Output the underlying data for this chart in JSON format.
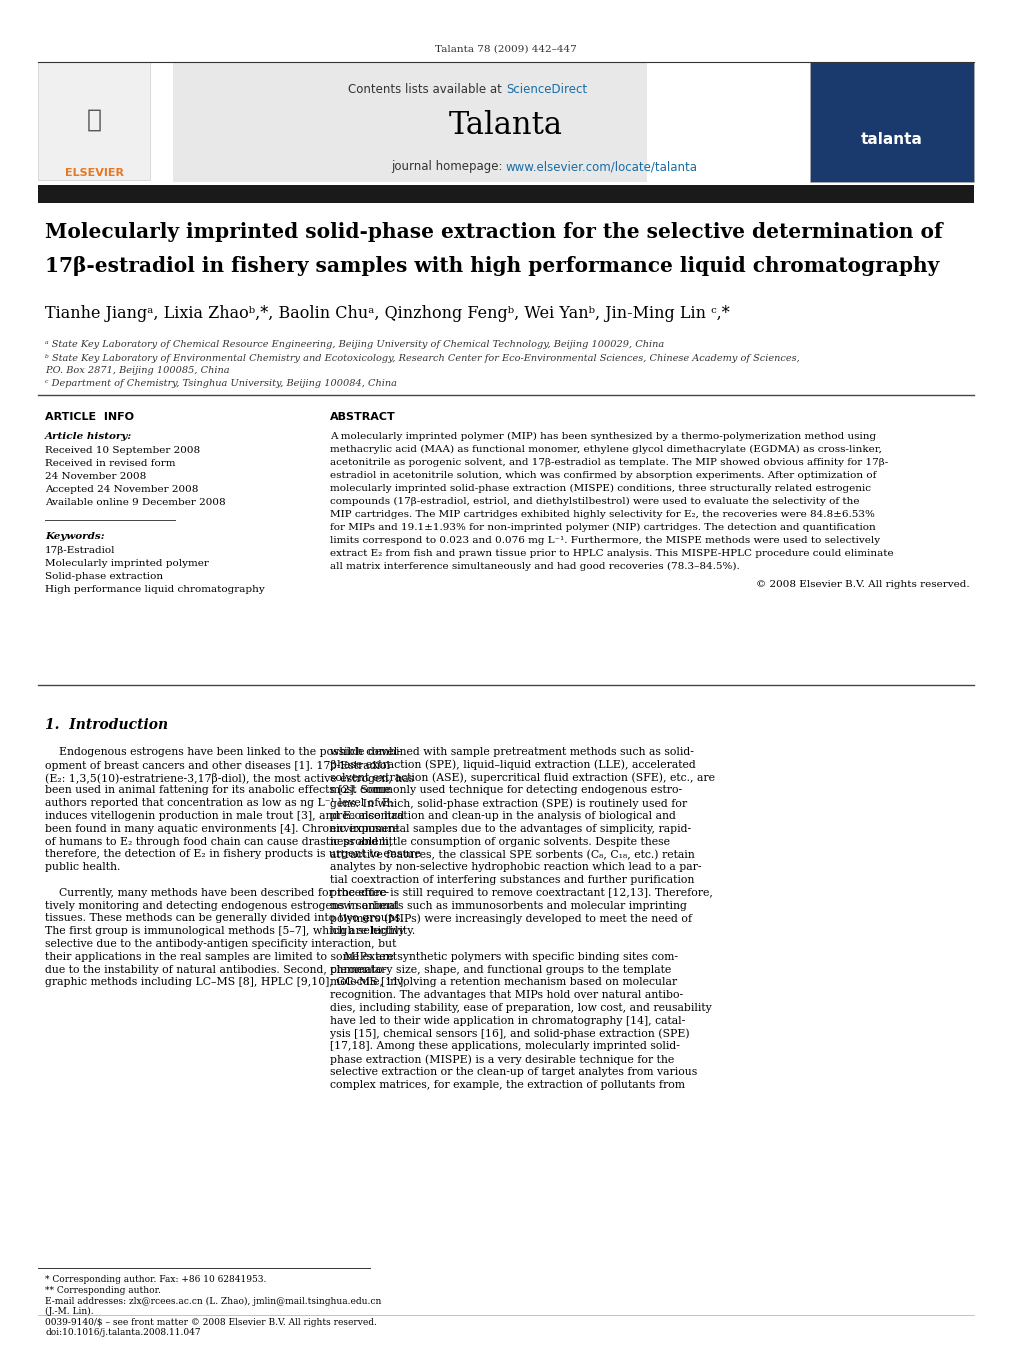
{
  "page_width": 9.92,
  "page_height": 13.23,
  "bg_color": "#ffffff",
  "journal_citation": "Talanta 78 (2009) 442–447",
  "journal_name": "Talanta",
  "journal_url": "www.elsevier.com/locate/talanta",
  "header_bg": "#e8e8e8",
  "link_color": "#1a6ca8",
  "text_color": "#000000",
  "article_info_header": "ARTICLE  INFO",
  "abstract_header": "ABSTRACT",
  "article_history_title": "Article history:",
  "history_lines": [
    "Received 10 September 2008",
    "Received in revised form",
    "24 November 2008",
    "Accepted 24 November 2008",
    "Available online 9 December 2008"
  ],
  "keywords_title": "Keywords:",
  "keywords_lines": [
    "17β-Estradiol",
    "Molecularly imprinted polymer",
    "Solid-phase extraction",
    "High performance liquid chromatography"
  ],
  "footer_left": "* Corresponding author. Fax: +86 10 62841953.",
  "footer_left2": "** Corresponding author.",
  "footer_email1": "E-mail addresses: zlx@rcees.ac.cn (L. Zhao), jmlin@mail.tsinghua.edu.cn",
  "footer_email2": "(J.-M. Lin).",
  "footer_bottom1": "0039-9140/$ – see front matter © 2008 Elsevier B.V. All rights reserved.",
  "footer_bottom2": "doi:10.1016/j.talanta.2008.11.047"
}
